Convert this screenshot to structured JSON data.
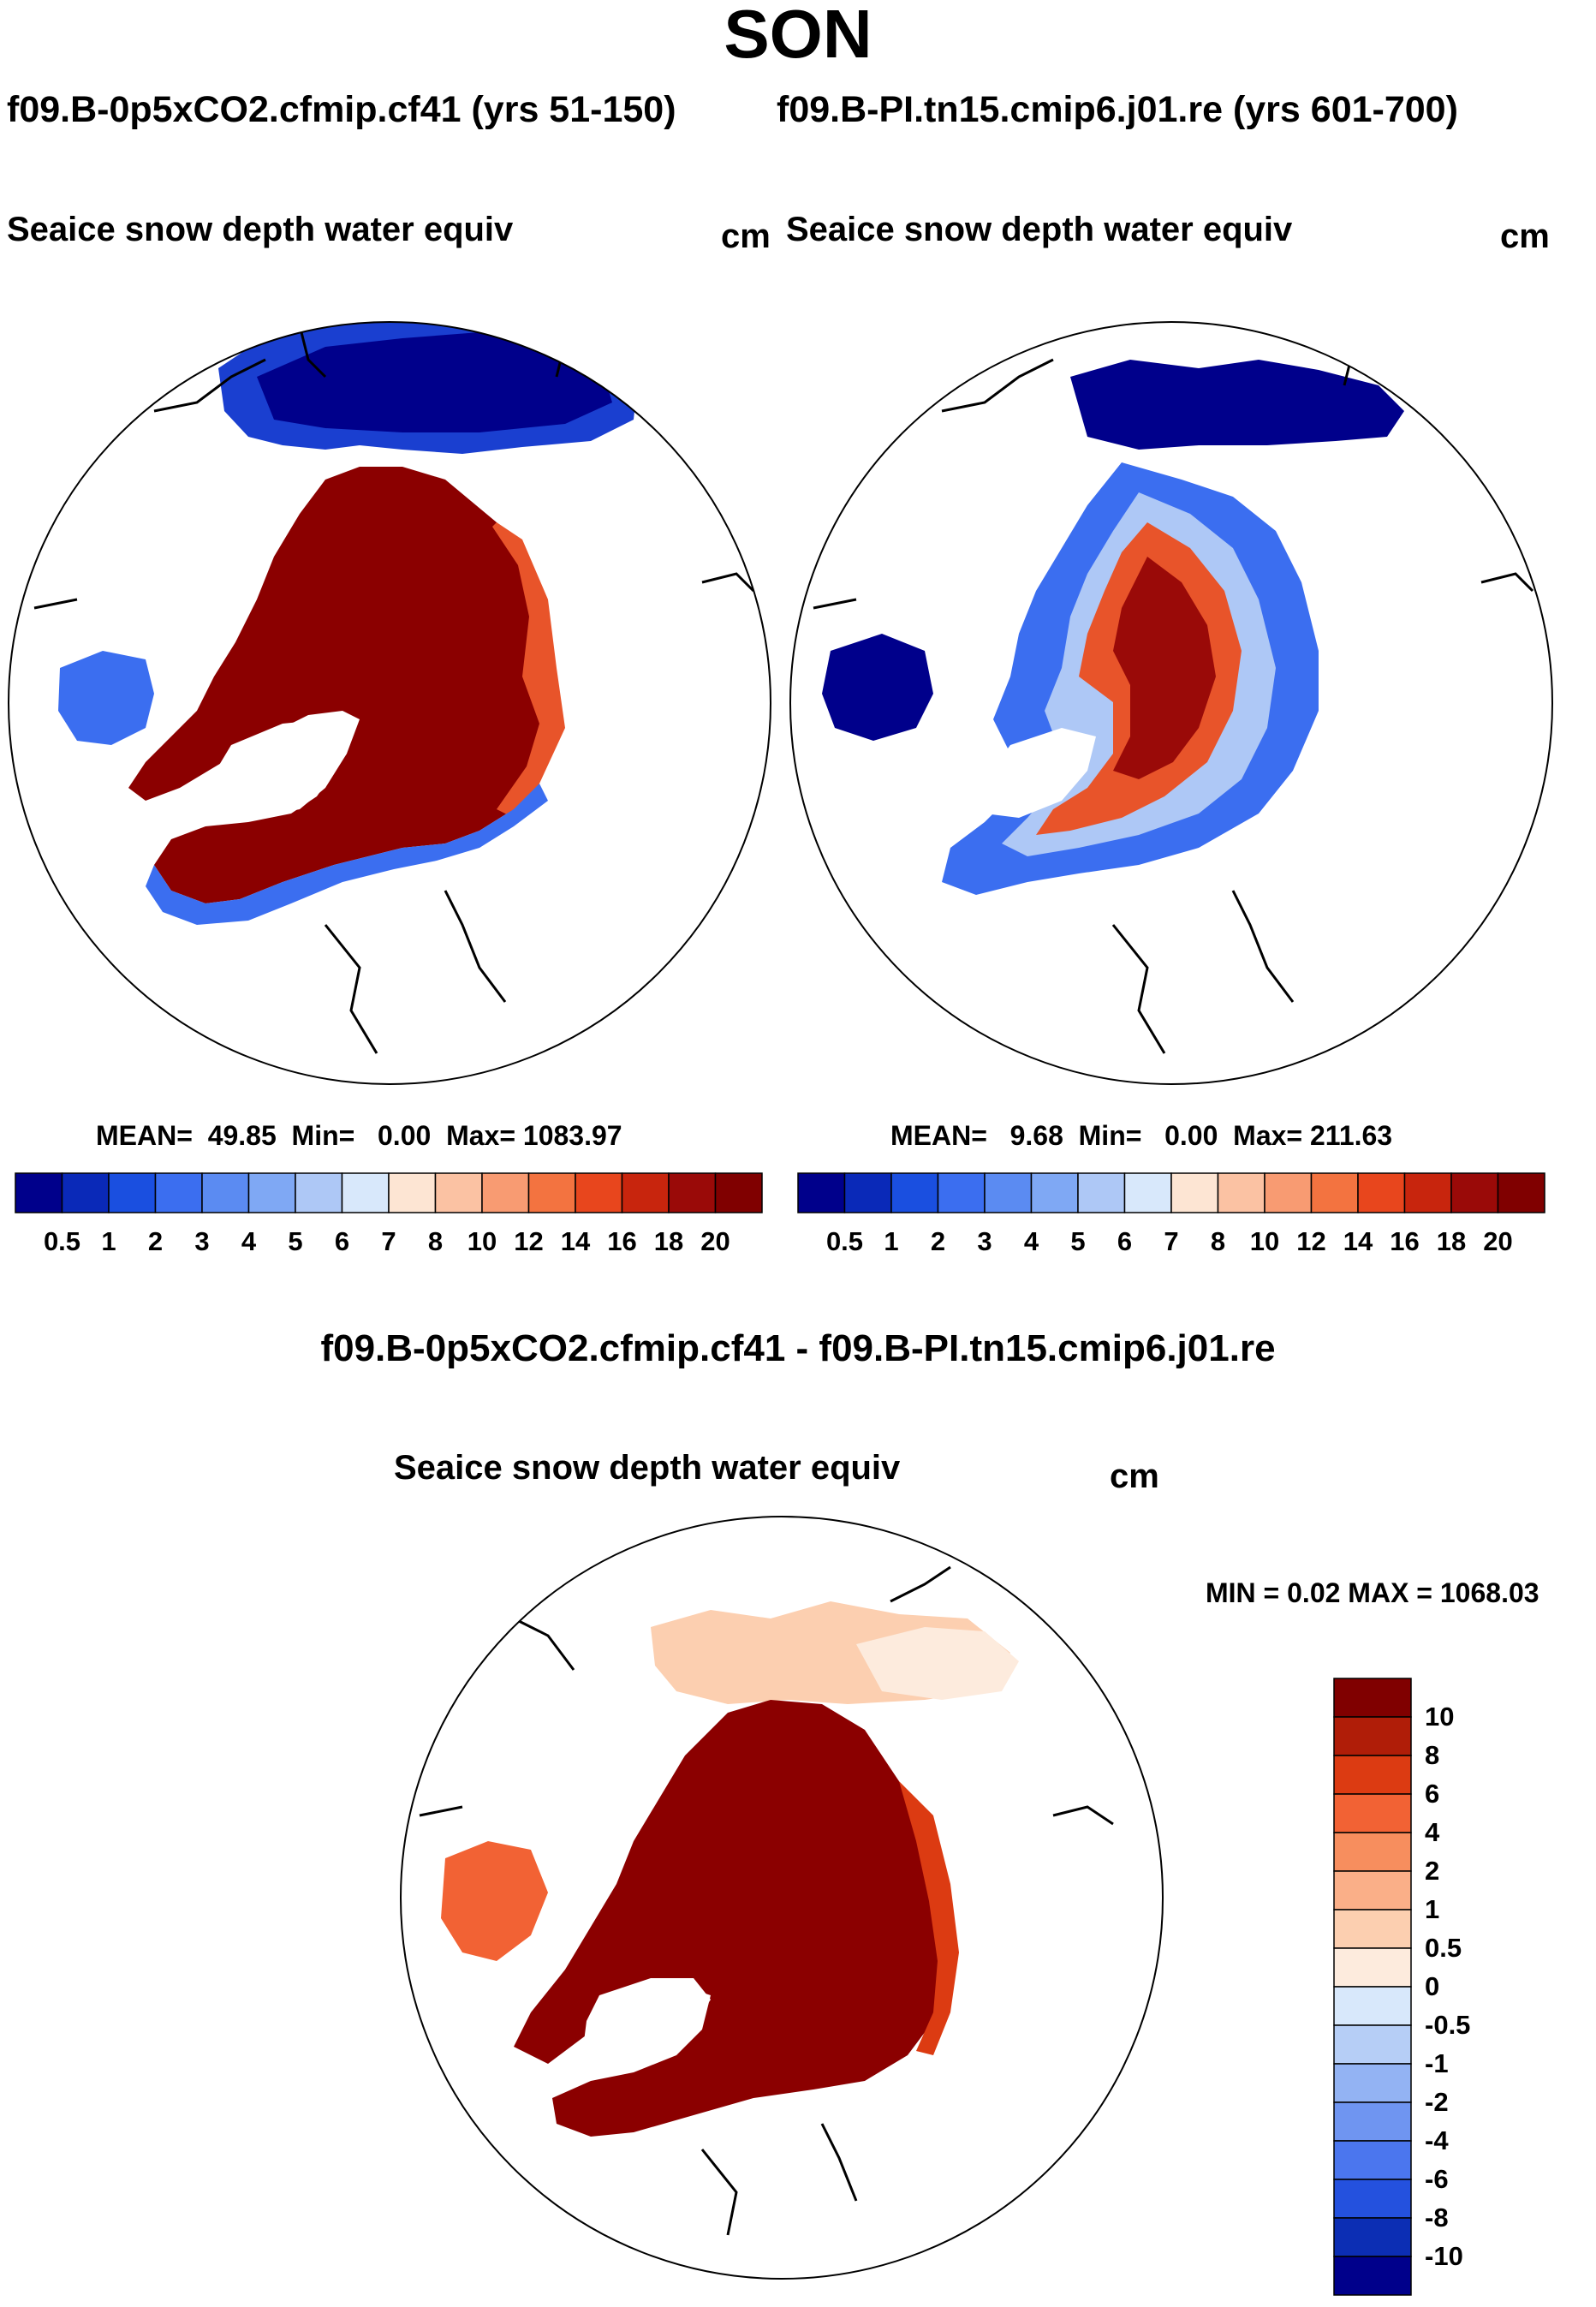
{
  "title": "SON",
  "runs": {
    "left": "f09.B-0p5xCO2.cfmip.cf41 (yrs 51-150)",
    "right": "f09.B-PI.tn15.cmip6.j01.re (yrs 601-700)"
  },
  "panels": [
    {
      "variable": "Seaice snow depth water equiv",
      "units": "cm",
      "stats": {
        "mean_label": "MEAN=",
        "mean": "49.85",
        "min_label": "Min=",
        "min": "0.00",
        "max_label": "Max=",
        "max": "1083.97"
      }
    },
    {
      "variable": "Seaice snow depth water equiv",
      "units": "cm",
      "stats": {
        "mean_label": "MEAN=",
        "mean": "9.68",
        "min_label": "Min=",
        "min": "0.00",
        "max_label": "Max=",
        "max": "211.63"
      }
    }
  ],
  "difference": {
    "title": "f09.B-0p5xCO2.cfmip.cf41 - f09.B-PI.tn15.cmip6.j01.re",
    "variable": "Seaice snow depth water equiv",
    "units": "cm",
    "minmax": "MIN =   0.02 MAX = 1068.03"
  },
  "colorbar_main": {
    "ticks": [
      "0.5",
      "1",
      "2",
      "3",
      "4",
      "5",
      "6",
      "7",
      "8",
      "10",
      "12",
      "14",
      "16",
      "18",
      "20"
    ],
    "colors": [
      "#00008b",
      "#0a29b8",
      "#1a4fe0",
      "#3b6ef0",
      "#5b8bf2",
      "#7fa8f4",
      "#aec8f6",
      "#d8e8fb",
      "#fde5d3",
      "#fbc2a3",
      "#f89b72",
      "#f37340",
      "#e8461d",
      "#c8250d",
      "#9a0a08",
      "#800000"
    ]
  },
  "colorbar_diff": {
    "ticks": [
      "10",
      "8",
      "6",
      "4",
      "2",
      "1",
      "0.5",
      "0",
      "-0.5",
      "-1",
      "-2",
      "-4",
      "-6",
      "-8",
      "-10"
    ],
    "colors": [
      "#800000",
      "#b01d08",
      "#dc3b12",
      "#f26234",
      "#f78e5e",
      "#faaf88",
      "#fccfb0",
      "#fdebdd",
      "#d8e8fb",
      "#b6cef6",
      "#93b3f3",
      "#6f95f1",
      "#4b76ee",
      "#2451de",
      "#0c2eb4",
      "#00008b"
    ]
  },
  "map": {
    "land_outline": "#000000",
    "high_color": "#8b0000",
    "medium_color": "#e8542a",
    "low_color": "#1a4fe0",
    "min_color": "#00008b"
  }
}
